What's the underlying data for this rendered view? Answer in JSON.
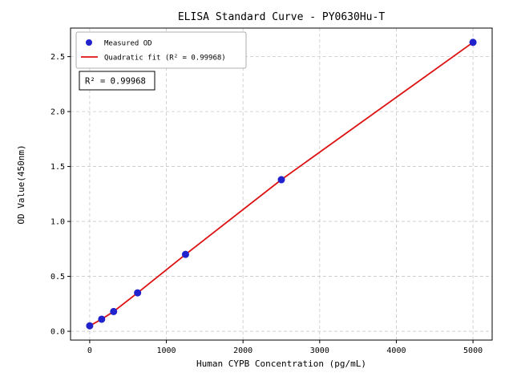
{
  "chart_data": {
    "type": "scatter",
    "title": "ELISA Standard Curve - PY0630Hu-T",
    "xlabel": "Human CYPB Concentration (pg/mL)",
    "ylabel": "OD Value(450nm)",
    "annotation": "R² = 0.99968",
    "xlim": [
      -250,
      5250
    ],
    "ylim": [
      -0.08,
      2.76
    ],
    "x_ticks": [
      0,
      1000,
      2000,
      3000,
      4000,
      5000
    ],
    "y_ticks": [
      0,
      0.5,
      1,
      1.5,
      2,
      2.5
    ],
    "grid": true,
    "grid_style": "dashed",
    "legend_position": "upper-left",
    "colors": {
      "points": "#2222cc",
      "fit_line": "#dd1111",
      "grid": "#c8c8c8",
      "frame": "#000000",
      "legend_border": "#999999",
      "annotation_border": "#000000"
    },
    "series": [
      {
        "name": "Measured OD",
        "kind": "scatter",
        "color": "#2222cc",
        "x": [
          0,
          156,
          312,
          625,
          1250,
          2500,
          5000
        ],
        "y": [
          0.05,
          0.11,
          0.18,
          0.35,
          0.7,
          1.38,
          2.63
        ]
      },
      {
        "name": "Quadratic fit (R² = 0.99968)",
        "kind": "line",
        "color": "#dd1111",
        "x": [
          0,
          156,
          312,
          625,
          1250,
          2500,
          5000
        ],
        "y": [
          0.05,
          0.11,
          0.18,
          0.35,
          0.7,
          1.38,
          2.63
        ]
      }
    ]
  }
}
